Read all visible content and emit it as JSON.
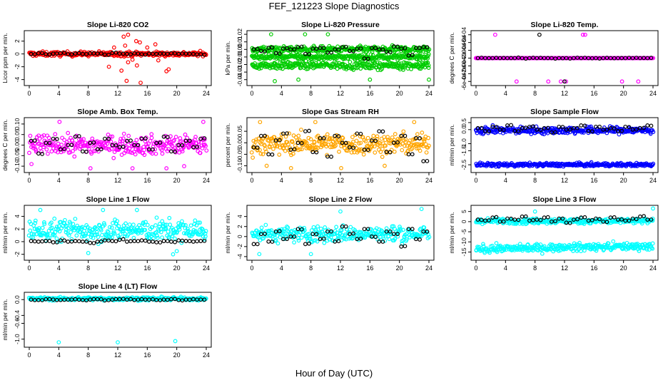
{
  "figure": {
    "title": "FEF_121223  Slope Diagnostics",
    "xlabel": "Hour of Day (UTC)"
  },
  "chart_data": [
    {
      "type": "scatter",
      "title": "Slope Li-820 CO2",
      "xlabel": "",
      "ylabel": "Licor ppm per min.",
      "xlim": [
        0,
        24
      ],
      "ylim": [
        -4.6,
        3.3
      ],
      "xticks": [
        "0",
        "4",
        "8",
        "12",
        "16",
        "20",
        "24"
      ],
      "yticks": [
        "-4",
        "-2",
        "0",
        "2"
      ],
      "color": "#ff0000",
      "grid": false,
      "series": [
        {
          "role": "points",
          "center": 0.0,
          "spread": 0.35,
          "outliers": [
            [
              10.8,
              -2.0
            ],
            [
              12.5,
              -2.6
            ],
            [
              13.2,
              -4.2
            ],
            [
              13.4,
              -1.3
            ],
            [
              14.6,
              -1.8
            ],
            [
              15.1,
              -4.5
            ],
            [
              17.1,
              1.5
            ],
            [
              18.6,
              -2.7
            ],
            [
              18.9,
              -2.4
            ],
            [
              12.8,
              2.7
            ],
            [
              13.4,
              3.0
            ],
            [
              14.5,
              2.0
            ],
            [
              15.0,
              1.8
            ],
            [
              16.0,
              1.0
            ],
            [
              17.5,
              -1.0
            ],
            [
              11.5,
              1.0
            ],
            [
              13.0,
              1.3
            ],
            [
              14.0,
              -0.9
            ]
          ]
        },
        {
          "role": "hourly-means",
          "values": [
            0.0,
            0.1,
            -0.05,
            0.05,
            0.1,
            -0.05,
            0.05,
            0.0,
            0.1,
            0.05,
            -0.1,
            0.15,
            0.05,
            0.0,
            0.1,
            -0.05,
            0.05,
            0.0,
            0.05,
            0.1,
            0.0,
            0.05,
            0.0,
            -0.05
          ]
        }
      ]
    },
    {
      "type": "scatter",
      "title": "Slope Li-820 Pressure",
      "xlabel": "",
      "ylabel": "kPa per min.",
      "xlim": [
        0,
        24
      ],
      "ylim": [
        -0.045,
        0.022
      ],
      "xticks": [
        "0",
        "4",
        "8",
        "12",
        "16",
        "20",
        "24"
      ],
      "yticks": [
        "-0.04",
        "-0.03",
        "-0.02",
        "-0.01",
        "0.00",
        "0.01",
        "0.02"
      ],
      "color": "#00cc00",
      "grid": false,
      "series": [
        {
          "role": "points",
          "center": 0.0,
          "spread": 0.004,
          "outliers": [
            [
              2.6,
              0.02
            ],
            [
              7.2,
              0.02
            ],
            [
              10.3,
              0.02
            ],
            [
              3.1,
              -0.042
            ],
            [
              6.3,
              -0.04
            ],
            [
              16.0,
              -0.04
            ],
            [
              24.0,
              -0.04
            ]
          ]
        },
        {
          "role": "points-lower-band",
          "center": -0.021,
          "spread": 0.005
        },
        {
          "role": "points-mid-band",
          "center": -0.01,
          "spread": 0.003
        },
        {
          "role": "hourly-means",
          "values": [
            0.0,
            -0.002,
            0.002,
            -0.005,
            0.001,
            0.0,
            0.003,
            -0.006,
            0.001,
            0.002,
            -0.004,
            0.0,
            0.003,
            -0.002,
            0.001,
            -0.012,
            0.002,
            0.0,
            -0.003,
            0.004,
            0.001,
            -0.008,
            0.002,
            0.003
          ]
        }
      ]
    },
    {
      "type": "scatter",
      "title": "Slope Li-820 Temp.",
      "xlabel": "",
      "ylabel": "degrees C per min.",
      "xlim": [
        0,
        24
      ],
      "ylim": [
        -0.00065,
        0.00065
      ],
      "xticks": [
        "0",
        "4",
        "8",
        "12",
        "16",
        "20",
        "24"
      ],
      "yticks": [
        "-6e-04",
        "-4e-04",
        "-2e-04",
        "0e+00",
        "2e-04",
        "4e-04",
        "6e-04"
      ],
      "color": "#ff00ff",
      "grid": false,
      "series": [
        {
          "role": "points",
          "center": 0.0,
          "spread": 0.0,
          "outliers": [
            [
              2.6,
              0.0006
            ],
            [
              14.5,
              0.0006
            ],
            [
              14.8,
              0.0006
            ],
            [
              5.5,
              -0.0006
            ],
            [
              9.8,
              -0.0006
            ],
            [
              11.5,
              -0.0006
            ],
            [
              12.2,
              -0.0006
            ],
            [
              19.8,
              -0.0006
            ],
            [
              22.0,
              -0.0006
            ],
            [
              0.0,
              0.0
            ],
            [
              12.0,
              0.0
            ]
          ]
        },
        {
          "role": "hourly-means",
          "values": [
            0,
            0,
            0,
            0,
            0,
            0,
            0,
            0,
            0,
            0,
            0,
            0,
            0,
            0,
            0,
            0,
            0,
            0,
            0,
            0,
            0,
            0,
            0,
            0
          ],
          "extra": [
            [
              8.6,
              0.0006
            ],
            [
              12.0,
              -0.0006
            ]
          ]
        }
      ]
    },
    {
      "type": "scatter",
      "title": "Slope Amb. Box Temp.",
      "xlabel": "",
      "ylabel": "degrees C per min.",
      "xlim": [
        0,
        24
      ],
      "ylim": [
        -0.12,
        0.12
      ],
      "xticks": [
        "0",
        "4",
        "8",
        "12",
        "16",
        "20",
        "24"
      ],
      "yticks": [
        "-0.10",
        "-0.05",
        "0.00",
        "0.05",
        "0.10"
      ],
      "color": "#ff00ff",
      "grid": false,
      "series": [
        {
          "role": "points",
          "center": 0.0,
          "spread": 0.045,
          "outliers": [
            [
              4.1,
              0.11
            ],
            [
              14.0,
              -0.11
            ],
            [
              18.6,
              -0.11
            ],
            [
              8.3,
              -0.11
            ],
            [
              23.6,
              0.11
            ],
            [
              21.0,
              -0.1
            ],
            [
              0.3,
              -0.09
            ]
          ]
        },
        {
          "role": "hourly-means",
          "values": [
            0.02,
            -0.04,
            0.01,
            0.03,
            -0.02,
            0.0,
            0.04,
            -0.03,
            0.01,
            -0.02,
            0.03,
            0.0,
            -0.01,
            0.02,
            0.0,
            0.03,
            -0.02,
            0.01,
            0.04,
            -0.03,
            0.0,
            0.02,
            -0.01,
            0.03
          ]
        }
      ]
    },
    {
      "type": "scatter",
      "title": "Slope Gas Stream RH",
      "xlabel": "",
      "ylabel": "percent per min.",
      "xlim": [
        0,
        24
      ],
      "ylim": [
        -0.12,
        0.1
      ],
      "xticks": [
        "0",
        "4",
        "8",
        "12",
        "16",
        "20",
        "24"
      ],
      "yticks": [
        "-0.10",
        "-0.05",
        "0.00",
        "0.05"
      ],
      "color": "#ffa500",
      "grid": false,
      "series": [
        {
          "role": "points",
          "center": -0.005,
          "spread": 0.045,
          "outliers": [
            [
              1.1,
              0.09
            ],
            [
              8.6,
              0.09
            ],
            [
              22.0,
              0.09
            ],
            [
              5.3,
              -0.11
            ],
            [
              12.1,
              -0.11
            ],
            [
              2.0,
              -0.1
            ],
            [
              18.0,
              -0.1
            ]
          ]
        },
        {
          "role": "hourly-means",
          "values": [
            -0.02,
            0.03,
            -0.05,
            0.01,
            0.04,
            -0.03,
            0.0,
            0.05,
            -0.04,
            0.02,
            -0.06,
            0.03,
            0.0,
            -0.02,
            0.04,
            -0.03,
            0.01,
            0.05,
            -0.04,
            0.0,
            0.03,
            -0.05,
            0.02,
            -0.08
          ]
        }
      ]
    },
    {
      "type": "scatter",
      "title": "Slope Sample Flow",
      "xlabel": "",
      "ylabel": "ml/min per min.",
      "xlim": [
        0,
        24
      ],
      "ylim": [
        -2.9,
        0.7
      ],
      "xticks": [
        "0",
        "4",
        "8",
        "12",
        "16",
        "20",
        "24"
      ],
      "yticks": [
        "-2.5",
        "-1.5",
        "-1.0",
        "0.0",
        "0.5"
      ],
      "color": "#0000ff",
      "grid": false,
      "series": [
        {
          "role": "points",
          "center": -0.05,
          "spread": 0.25
        },
        {
          "role": "points-lower-band",
          "from": [
            0.0,
            -2.5
          ],
          "to": [
            24.0,
            -2.5
          ],
          "spread": 0.12
        },
        {
          "role": "hourly-means",
          "values": [
            0.1,
            -0.1,
            0.2,
            0.0,
            0.3,
            -0.1,
            0.1,
            0.2,
            0.0,
            0.1,
            -0.2,
            0.2,
            0.0,
            0.1,
            0.3,
            -0.1,
            0.2,
            0.0,
            0.1,
            -0.1,
            0.2,
            0.0,
            0.1,
            0.3
          ]
        }
      ]
    },
    {
      "type": "scatter",
      "title": "Slope Line 1 Flow",
      "xlabel": "",
      "ylabel": "ml/min per min.",
      "xlim": [
        0,
        24
      ],
      "ylim": [
        -2.6,
        5.4
      ],
      "xticks": [
        "0",
        "4",
        "8",
        "12",
        "16",
        "20",
        "24"
      ],
      "yticks": [
        "-2",
        "0",
        "2",
        "4"
      ],
      "color": "#00ffff",
      "grid": false,
      "series": [
        {
          "role": "points",
          "center": 1.8,
          "spread": 1.7,
          "outliers": [
            [
              19.5,
              -2.0
            ],
            [
              8.0,
              -1.8
            ],
            [
              20.0,
              -1.5
            ],
            [
              1.5,
              5.0
            ],
            [
              10.0,
              5.0
            ],
            [
              14.6,
              5.0
            ]
          ]
        },
        {
          "role": "hourly-means",
          "values": [
            0.1,
            0.0,
            0.1,
            -0.1,
            0.2,
            0.0,
            0.1,
            0.0,
            -0.2,
            0.0,
            0.2,
            0.1,
            0.3,
            0.0,
            0.1,
            0.2,
            0.0,
            -0.1,
            0.1,
            0.0,
            0.2,
            0.1,
            0.0,
            0.1
          ]
        }
      ]
    },
    {
      "type": "scatter",
      "title": "Slope Line 2 Flow",
      "xlabel": "",
      "ylabel": "ml/min per min.",
      "xlim": [
        0,
        24
      ],
      "ylim": [
        -4.3,
        5.8
      ],
      "xticks": [
        "0",
        "4",
        "8",
        "12",
        "16",
        "20",
        "24"
      ],
      "yticks": [
        "-4",
        "-2",
        "0",
        "2",
        "4"
      ],
      "color": "#00ffff",
      "grid": false,
      "series": [
        {
          "role": "points",
          "center": 0.5,
          "spread": 1.6,
          "outliers": [
            [
              23.0,
              5.5
            ],
            [
              12.0,
              5.0
            ],
            [
              1.0,
              -3.5
            ],
            [
              8.0,
              -3.5
            ]
          ]
        },
        {
          "role": "hourly-means",
          "values": [
            -1.5,
            0.5,
            -1.0,
            1.0,
            -0.5,
            0.0,
            1.5,
            -1.5,
            0.5,
            -0.5,
            1.0,
            -1.0,
            2.0,
            0.5,
            -0.5,
            1.5,
            0.0,
            -1.0,
            1.0,
            0.5,
            -2.0,
            1.5,
            -0.5,
            1.0
          ]
        }
      ]
    },
    {
      "type": "scatter",
      "title": "Slope Line 3 Flow",
      "xlabel": "",
      "ylabel": "ml/min per min.",
      "xlim": [
        0,
        24
      ],
      "ylim": [
        -18,
        7
      ],
      "xticks": [
        "0",
        "4",
        "8",
        "12",
        "16",
        "20",
        "24"
      ],
      "yticks": [
        "-15",
        "-10",
        "-5",
        "0",
        "5"
      ],
      "color": "#00ffff",
      "grid": false,
      "series": [
        {
          "role": "points",
          "center": 0.3,
          "spread": 1.3,
          "outliers": [
            [
              24.0,
              6.5
            ],
            [
              8.0,
              5.0
            ]
          ]
        },
        {
          "role": "points-lower-band",
          "from": [
            0.0,
            -13.5
          ],
          "to": [
            24.0,
            -12.0
          ],
          "spread": 1.8
        },
        {
          "role": "hourly-means",
          "values": [
            1.0,
            0.5,
            2.0,
            0.0,
            1.5,
            1.0,
            2.5,
            0.5,
            1.0,
            2.0,
            0.0,
            1.5,
            -0.5,
            1.0,
            2.0,
            0.5,
            1.5,
            0.0,
            2.0,
            1.0,
            0.5,
            1.5,
            2.5,
            1.0
          ]
        }
      ]
    },
    {
      "type": "scatter",
      "title": "Slope Line 4 (LT) Flow",
      "xlabel": "",
      "ylabel": "ml/min per min.",
      "xlim": [
        0,
        24
      ],
      "ylim": [
        -1.15,
        0.13
      ],
      "xticks": [
        "0",
        "4",
        "8",
        "12",
        "16",
        "20",
        "24"
      ],
      "yticks": [
        "-1.0",
        "-0.6",
        "-0.4",
        "0.0"
      ],
      "color": "#00ffff",
      "grid": false,
      "series": [
        {
          "role": "points",
          "center": 0.02,
          "spread": 0.04,
          "outliers": [
            [
              4.0,
              -1.08
            ],
            [
              12.0,
              -1.08
            ],
            [
              19.8,
              -1.05
            ]
          ]
        },
        {
          "role": "hourly-means",
          "values": [
            0.0,
            -0.01,
            0.01,
            0.0,
            -0.01,
            0.0,
            0.01,
            -0.01,
            0.0,
            0.01,
            -0.02,
            0.0,
            0.01,
            0.0,
            -0.01,
            0.01,
            0.0,
            -0.01,
            0.0,
            0.01,
            -0.01,
            0.0,
            0.01,
            0.0
          ]
        }
      ]
    }
  ]
}
